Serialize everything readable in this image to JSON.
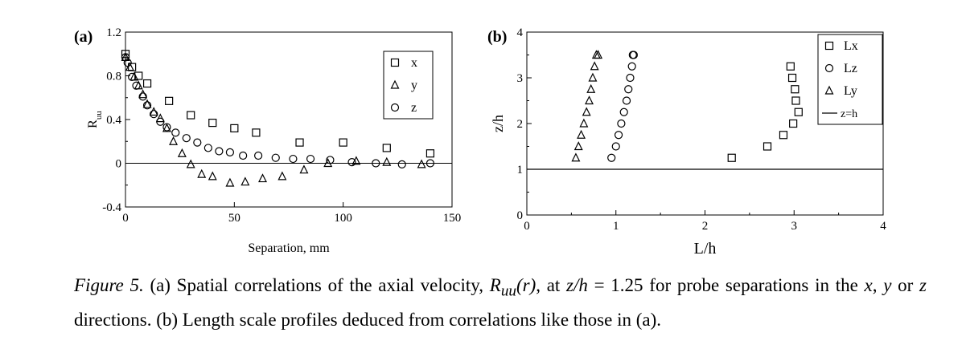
{
  "chart_data": [
    {
      "type": "scatter",
      "panel_label": "(a)",
      "title": "",
      "xlabel": "Separation, mm",
      "ylabel": "R",
      "ylabel_sub": "uu",
      "xlim": [
        0,
        150
      ],
      "ylim": [
        -0.4,
        1.2
      ],
      "xticks": [
        "0",
        "50",
        "100",
        "150"
      ],
      "yticks": [
        "1.2",
        "0.8",
        "0.4",
        "0",
        "-0.4"
      ],
      "reference_line": {
        "y": 0
      },
      "grid": false,
      "legend_position": "top-right",
      "series": [
        {
          "name": "x",
          "marker": "square",
          "x": [
            0,
            3,
            6,
            10,
            20,
            30,
            40,
            50,
            60,
            80,
            100,
            120,
            140
          ],
          "y": [
            1.0,
            0.88,
            0.8,
            0.73,
            0.57,
            0.44,
            0.37,
            0.32,
            0.28,
            0.19,
            0.19,
            0.14,
            0.09
          ]
        },
        {
          "name": "y",
          "marker": "triangle",
          "x": [
            0,
            2,
            4,
            6,
            8,
            10,
            13,
            16,
            19,
            22,
            26,
            30,
            35,
            40,
            48,
            55,
            63,
            72,
            82,
            93,
            106,
            120,
            136
          ],
          "y": [
            0.97,
            0.88,
            0.79,
            0.71,
            0.63,
            0.54,
            0.47,
            0.41,
            0.32,
            0.2,
            0.09,
            -0.01,
            -0.1,
            -0.12,
            -0.18,
            -0.17,
            -0.14,
            -0.12,
            -0.06,
            0.0,
            0.02,
            0.01,
            -0.01
          ]
        },
        {
          "name": "z",
          "marker": "circle",
          "x": [
            0,
            1,
            3,
            5,
            8,
            10,
            13,
            16,
            19,
            23,
            28,
            33,
            38,
            43,
            48,
            54,
            61,
            69,
            77,
            85,
            94,
            104,
            115,
            127,
            140
          ],
          "y": [
            0.97,
            0.92,
            0.79,
            0.71,
            0.61,
            0.53,
            0.45,
            0.38,
            0.33,
            0.28,
            0.23,
            0.19,
            0.14,
            0.11,
            0.1,
            0.07,
            0.07,
            0.05,
            0.04,
            0.04,
            0.03,
            0.01,
            0.0,
            -0.01,
            0.0
          ]
        }
      ]
    },
    {
      "type": "scatter",
      "panel_label": "(b)",
      "title": "",
      "xlabel": "L/h",
      "ylabel": "z/h",
      "xlim": [
        0,
        4
      ],
      "ylim": [
        0,
        4
      ],
      "xticks": [
        "0",
        "1",
        "2",
        "3",
        "4"
      ],
      "yticks": [
        "0",
        "1",
        "2",
        "3",
        "4"
      ],
      "grid": false,
      "legend_position": "top-right",
      "series": [
        {
          "name": "Lx",
          "marker": "square",
          "x": [
            2.3,
            2.7,
            2.88,
            2.99,
            3.05,
            3.02,
            3.01,
            2.98,
            2.96
          ],
          "y": [
            1.25,
            1.5,
            1.75,
            2.0,
            2.25,
            2.5,
            2.75,
            3.0,
            3.25
          ]
        },
        {
          "name": "Lz",
          "marker": "circle",
          "x": [
            0.95,
            1.0,
            1.03,
            1.06,
            1.09,
            1.12,
            1.14,
            1.16,
            1.18,
            1.19,
            1.2
          ],
          "y": [
            1.25,
            1.5,
            1.75,
            2.0,
            2.25,
            2.5,
            2.75,
            3.0,
            3.25,
            3.5,
            3.5
          ]
        },
        {
          "name": "Ly",
          "marker": "triangle",
          "x": [
            0.55,
            0.58,
            0.61,
            0.64,
            0.67,
            0.7,
            0.72,
            0.74,
            0.76,
            0.78,
            0.8
          ],
          "y": [
            1.25,
            1.5,
            1.75,
            2.0,
            2.25,
            2.5,
            2.75,
            3.0,
            3.25,
            3.5,
            3.5
          ]
        },
        {
          "name": "z=h",
          "marker": "line",
          "y_const": 1.0
        }
      ]
    }
  ],
  "caption": {
    "figure_label": "Figure 5.",
    "text_a": " (a) Spatial correlations of the axial velocity, ",
    "math_R": "R",
    "math_sub": "uu",
    "math_arg": "(r)",
    "text_b": ", at ",
    "math_zh": "z/h",
    "math_eq": " = 1.25",
    "text_c": " for probe separations in the ",
    "math_x": "x",
    "sep1": ", ",
    "math_y": "y",
    "text_or": " or ",
    "math_z": "z",
    "text_d": " directions. (b) Length scale profiles deduced from correlations like those in (a)."
  }
}
